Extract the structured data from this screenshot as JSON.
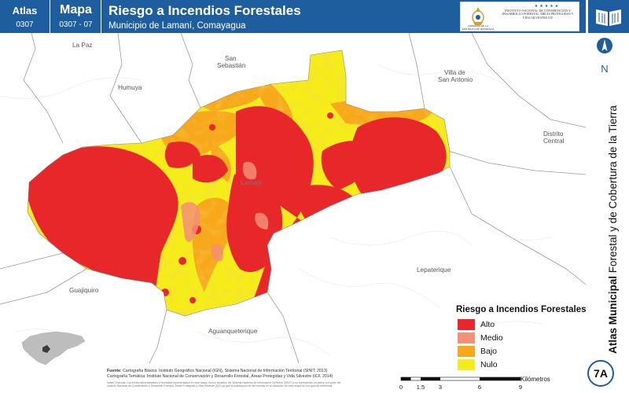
{
  "header": {
    "atlas_label": "Atlas",
    "atlas_code": "0307",
    "mapa_label": "Mapa",
    "mapa_code": "0307 - 07",
    "title": "Riesgo a Incendios Forestales",
    "subtitle": "Municipio de Lamaní, Comayagua",
    "gov_logo_text": "GOBIERNO DE LA REPÚBLICA DE HONDURAS",
    "icf_text": "INSTITUTO NACIONAL DE CONSERVACIÓN Y DESARROLLO FORESTAL ÁREAS PROTEGIDAS Y VIDA SILVESTRE ICF",
    "icf_stars": "★★★★★"
  },
  "north": {
    "letter": "N"
  },
  "side": {
    "bold": "Atlas Municipal",
    "rest": " Forestal y de Cobertura de la Tierra"
  },
  "places": {
    "la_paz": "La Paz",
    "san_sebastian_1": "San",
    "san_sebastian_2": "Sebastián",
    "humuya": "Humuya",
    "villa_1": "Villa de",
    "villa_2": "San Antonio",
    "distrito_1": "Distrito",
    "distrito_2": "Central",
    "lamani": "Lamaní",
    "lepaterique": "Lepaterique",
    "guajiquiro": "Guajiquiro",
    "aguanqueterique": "Aguanqueterique"
  },
  "legend": {
    "title": "Riesgo a Incendios Forestales",
    "items": [
      {
        "label": "Alto",
        "color": "#e8272a"
      },
      {
        "label": "Medio",
        "color": "#f58f75"
      },
      {
        "label": "Bajo",
        "color": "#f7a81b"
      },
      {
        "label": "Nulo",
        "color": "#f5ed1a"
      }
    ]
  },
  "source": {
    "label": "Fuente:",
    "line1": " Cartografía Básica: Instituto Geográfico Nacional (IGN), Sistema Nacional de Información Territorial (SINIT, 2013)",
    "line2": "Cartografía Temática: Instituto Nacional de Conservación y Desarrollo Forestal, Áreas Protegidas y Vida Silvestre (ICF, 2014)",
    "notes": "Notas Técnicas: Los límites administrativos y forestales representados en este mapa, fueron tomados del Sistema Nacional de Información Territorial (SINIT) y no representan un patrón por parte del Instituto Nacional de Conservación y Desarrollo Forestal, Áreas Protegidas y Vida Silvestre (ICF) ya que la localización de las mismas en la utilización de este mapa es una guía de referencia."
  },
  "scale": {
    "ticks": [
      "0",
      "1.5",
      "3",
      "6",
      "9"
    ],
    "unit": "Kilómetros"
  },
  "badge": "7A"
}
